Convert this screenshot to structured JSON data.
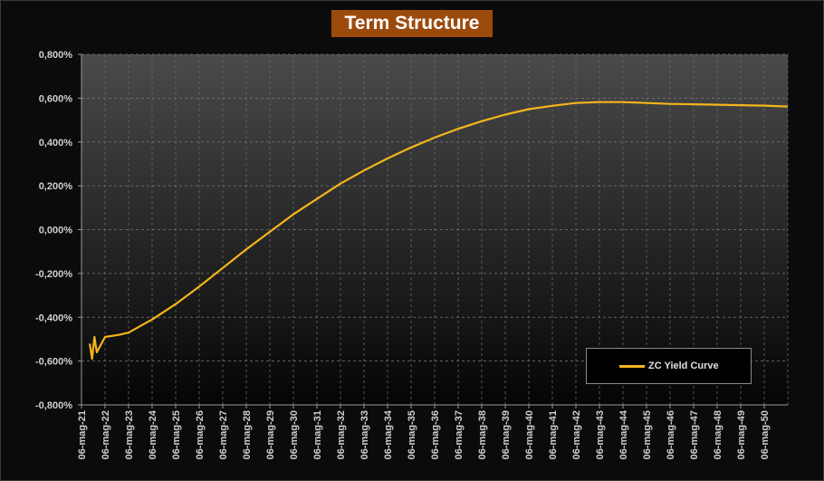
{
  "chart_data": {
    "type": "line",
    "title": "Term Structure",
    "xlabel": "",
    "ylabel": "",
    "ylim": [
      -0.8,
      0.8
    ],
    "y_unit": "%",
    "grid": true,
    "legend_position": "bottom-right",
    "line_color": "#f5b41c",
    "y_ticks": [
      "0,800%",
      "0,600%",
      "0,400%",
      "0,200%",
      "0,000%",
      "-0,200%",
      "-0,400%",
      "-0,600%",
      "-0,800%"
    ],
    "x_ticks": [
      "06-mag-21",
      "06-mag-22",
      "06-mag-23",
      "06-mag-24",
      "06-mag-25",
      "06-mag-26",
      "06-mag-27",
      "06-mag-28",
      "06-mag-29",
      "06-mag-30",
      "06-mag-31",
      "06-mag-32",
      "06-mag-33",
      "06-mag-34",
      "06-mag-35",
      "06-mag-36",
      "06-mag-37",
      "06-mag-38",
      "06-mag-39",
      "06-mag-40",
      "06-mag-41",
      "06-mag-42",
      "06-mag-43",
      "06-mag-44",
      "06-mag-45",
      "06-mag-46",
      "06-mag-47",
      "06-mag-48",
      "06-mag-49",
      "06-mag-50"
    ],
    "series": [
      {
        "name": "ZC Yield Curve",
        "x": [
          2021.35,
          2021.45,
          2021.55,
          2021.65,
          2021.8,
          2022.0,
          2022.3,
          2022.6,
          2023.0,
          2024.0,
          2025.0,
          2026.0,
          2027.0,
          2028.0,
          2029.0,
          2030.0,
          2031.0,
          2032.0,
          2033.0,
          2034.0,
          2035.0,
          2036.0,
          2037.0,
          2038.0,
          2039.0,
          2040.0,
          2041.0,
          2042.0,
          2043.0,
          2044.0,
          2045.0,
          2046.0,
          2047.0,
          2048.0,
          2049.0,
          2050.0,
          2051.0
        ],
        "values": [
          -0.52,
          -0.59,
          -0.49,
          -0.56,
          -0.53,
          -0.49,
          -0.485,
          -0.48,
          -0.47,
          -0.41,
          -0.34,
          -0.26,
          -0.175,
          -0.09,
          -0.01,
          0.07,
          0.14,
          0.21,
          0.27,
          0.325,
          0.375,
          0.42,
          0.46,
          0.495,
          0.525,
          0.55,
          0.565,
          0.578,
          0.582,
          0.582,
          0.578,
          0.574,
          0.572,
          0.57,
          0.568,
          0.566,
          0.562
        ]
      }
    ]
  }
}
